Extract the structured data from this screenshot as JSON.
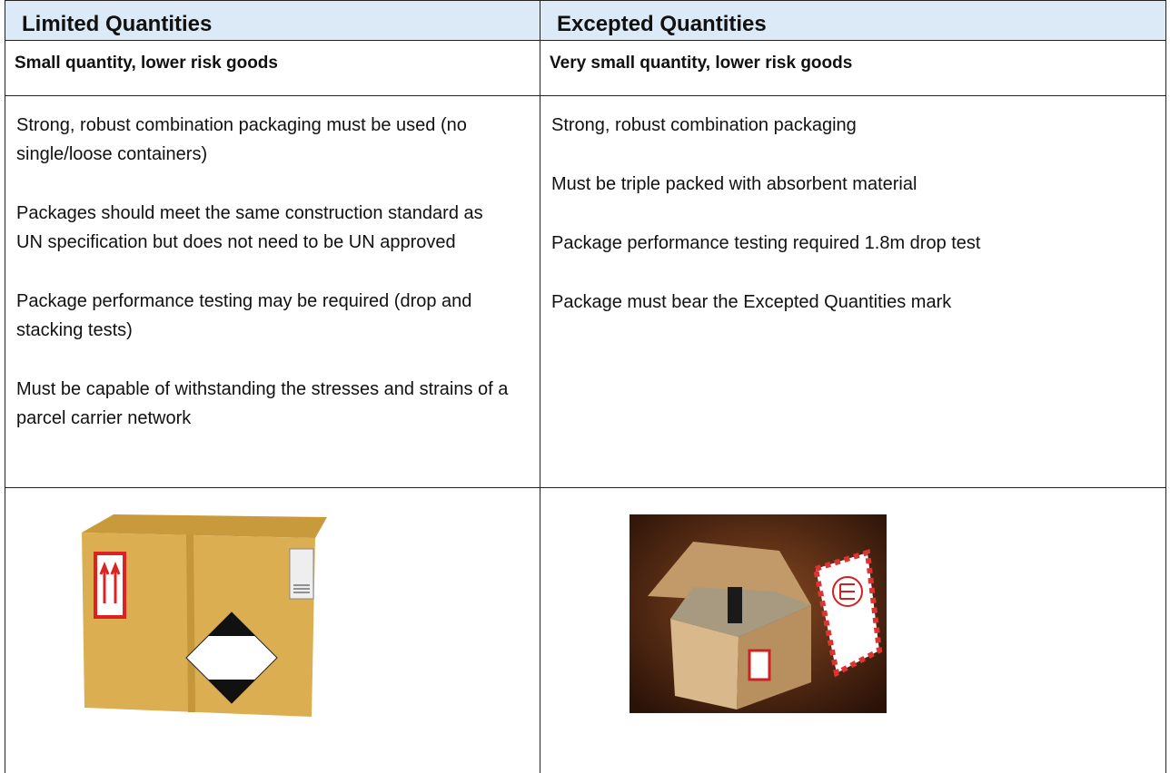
{
  "table": {
    "headers": [
      "Limited Quantities",
      "Excepted Quantities"
    ],
    "subheaders": [
      "Small quantity, lower risk goods",
      "Very small quantity, lower risk goods"
    ],
    "requirements": [
      [
        "Strong, robust combination packaging must be used (no single/loose containers)",
        "Packages should meet the same construction standard as UN specification but does not need to be UN approved",
        "Package performance testing may be required (drop and stacking tests)",
        "Must be capable of withstanding the stresses and strains of a parcel carrier network"
      ],
      [
        "Strong, robust combination packaging",
        "Must be triple packed with absorbent material",
        "Package performance testing required 1.8m drop test",
        "Package must bear the Excepted Quantities mark"
      ]
    ]
  }
}
